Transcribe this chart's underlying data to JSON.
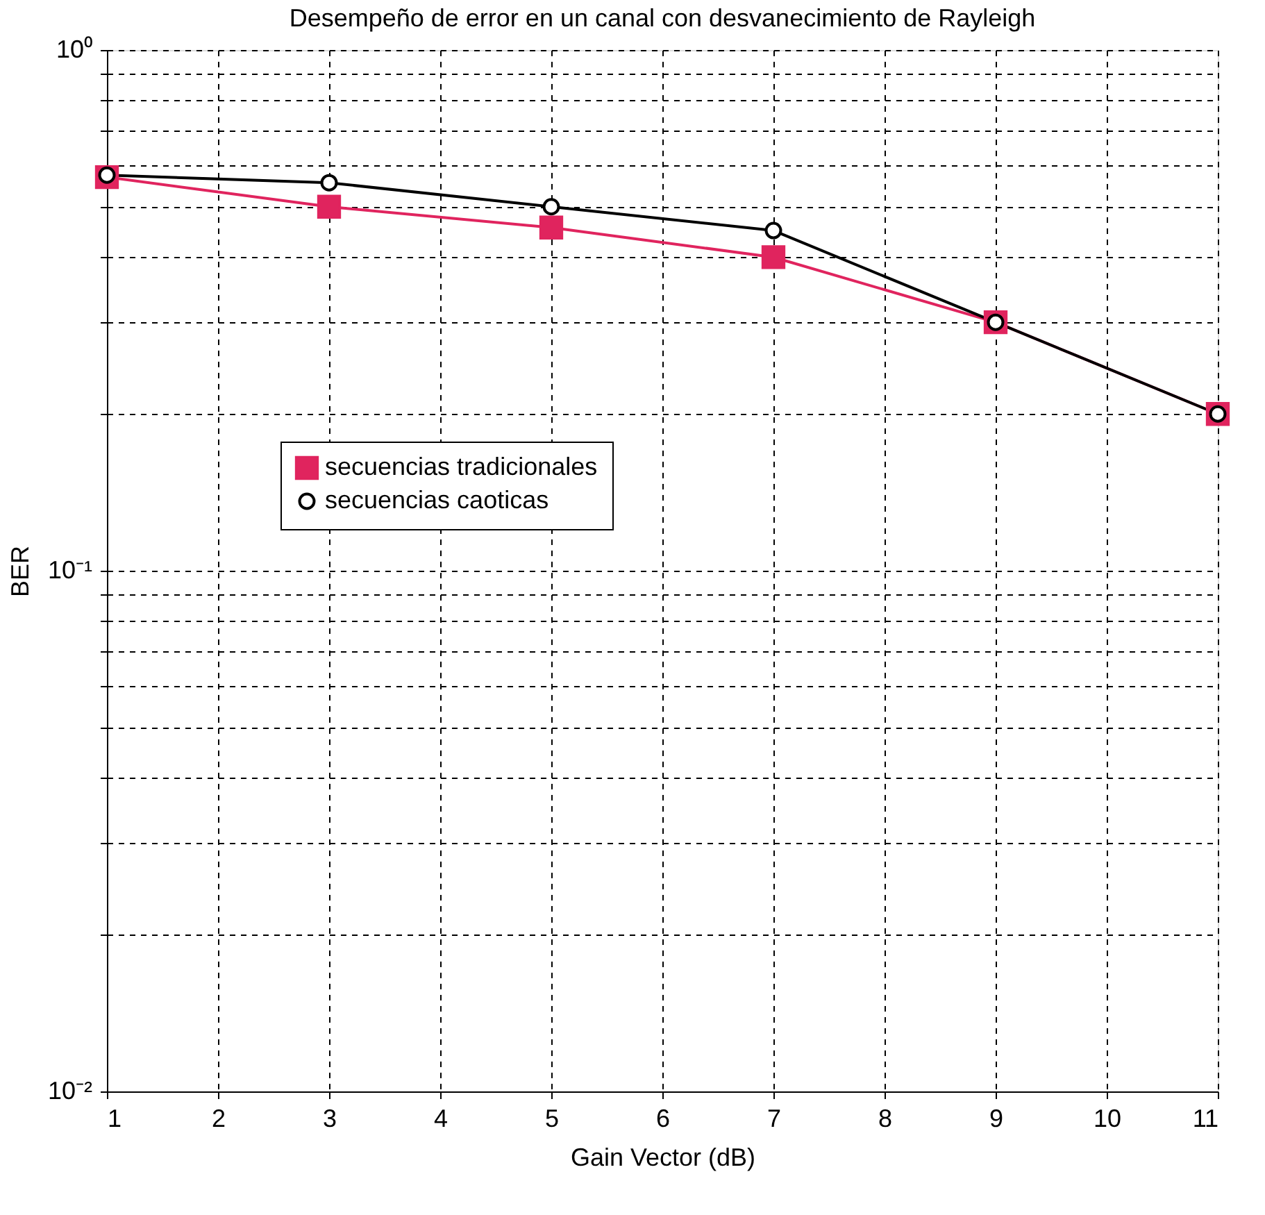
{
  "chart_data": {
    "type": "line",
    "title": "Desempeño de error en un canal con desvanecimiento de Rayleigh",
    "xlabel": "Gain Vector (dB)",
    "ylabel": "BER",
    "x": [
      1,
      3,
      5,
      7,
      9,
      11
    ],
    "series": [
      {
        "name": "secuencias tradicionales",
        "color": "#e0245e",
        "marker": "square",
        "values": [
          0.57,
          0.5,
          0.456,
          0.4,
          0.3,
          0.2
        ]
      },
      {
        "name": "secuencias caoticas",
        "color": "#000000",
        "marker": "circle",
        "values": [
          0.575,
          0.556,
          0.5,
          0.45,
          0.3,
          0.2
        ]
      }
    ],
    "log": true,
    "xlim": [
      1,
      11
    ],
    "xticks": [
      1,
      2,
      3,
      4,
      5,
      6,
      7,
      8,
      9,
      10,
      11
    ],
    "ylim": [
      0.01,
      1
    ],
    "yticks": [
      {
        "value": 0.01,
        "label": "10⁻²"
      },
      {
        "value": 0.02,
        "label": null
      },
      {
        "value": 0.03,
        "label": null
      },
      {
        "value": 0.04,
        "label": null
      },
      {
        "value": 0.05,
        "label": null
      },
      {
        "value": 0.06,
        "label": null
      },
      {
        "value": 0.07,
        "label": null
      },
      {
        "value": 0.08,
        "label": null
      },
      {
        "value": 0.09,
        "label": null
      },
      {
        "value": 0.1,
        "label": "10⁻¹"
      },
      {
        "value": 0.2,
        "label": null
      },
      {
        "value": 0.3,
        "label": null
      },
      {
        "value": 0.4,
        "label": null
      },
      {
        "value": 0.5,
        "label": null
      },
      {
        "value": 0.6,
        "label": null
      },
      {
        "value": 0.7,
        "label": null
      },
      {
        "value": 0.8,
        "label": null
      },
      {
        "value": 0.9,
        "label": null
      },
      {
        "value": 1,
        "label": "10⁰"
      }
    ],
    "grid": true,
    "legend": "left",
    "line_style": "solid"
  }
}
